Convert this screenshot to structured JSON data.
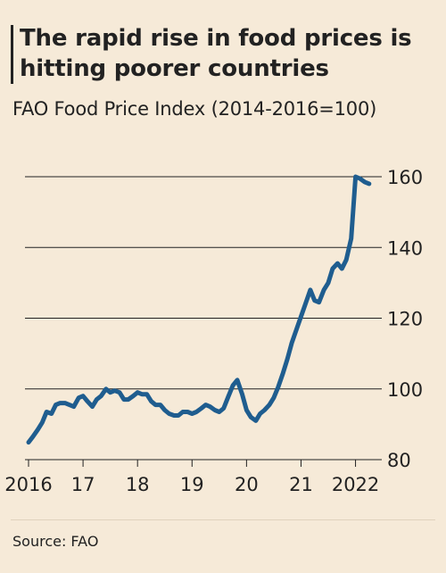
{
  "title": "The rapid rise in food prices is hitting poorer countries",
  "subtitle": "FAO Food Price Index (2014-2016=100)",
  "source": "Source: FAO",
  "colors": {
    "background": "#f6ead8",
    "line": "#1f5d8f",
    "grid": "#222222"
  },
  "chart_data": {
    "type": "line",
    "title": "The rapid rise in food prices is hitting poorer countries",
    "subtitle": "FAO Food Price Index (2014-2016=100)",
    "xlabel": "",
    "ylabel": "",
    "xlim": [
      2016.0,
      2022.4
    ],
    "ylim": [
      80,
      160
    ],
    "yticks": [
      80,
      100,
      120,
      140,
      160
    ],
    "xticks": [
      {
        "value": 2016,
        "label": "2016"
      },
      {
        "value": 2017,
        "label": "17"
      },
      {
        "value": 2018,
        "label": "18"
      },
      {
        "value": 2019,
        "label": "19"
      },
      {
        "value": 2020,
        "label": "20"
      },
      {
        "value": 2021,
        "label": "21"
      },
      {
        "value": 2022,
        "label": "2022"
      }
    ],
    "grid": true,
    "series": [
      {
        "x": [
          2016.0,
          2016.08,
          2016.17,
          2016.25,
          2016.33,
          2016.42,
          2016.5,
          2016.58,
          2016.67,
          2016.75,
          2016.83,
          2016.92,
          2017.0,
          2017.08,
          2017.17,
          2017.25,
          2017.33,
          2017.42,
          2017.5,
          2017.58,
          2017.67,
          2017.75,
          2017.83,
          2017.92,
          2018.0,
          2018.08,
          2018.17,
          2018.25,
          2018.33,
          2018.42,
          2018.5,
          2018.58,
          2018.67,
          2018.75,
          2018.83,
          2018.92,
          2019.0,
          2019.08,
          2019.17,
          2019.25,
          2019.33,
          2019.42,
          2019.5,
          2019.58,
          2019.67,
          2019.75,
          2019.83,
          2019.92,
          2020.0,
          2020.08,
          2020.17,
          2020.25,
          2020.33,
          2020.42,
          2020.5,
          2020.58,
          2020.67,
          2020.75,
          2020.83,
          2020.92,
          2021.0,
          2021.08,
          2021.17,
          2021.25,
          2021.33,
          2021.42,
          2021.5,
          2021.58,
          2021.67,
          2021.75,
          2021.83,
          2021.92,
          2022.0,
          2022.08,
          2022.17,
          2022.25
        ],
        "values": [
          84.9,
          86.5,
          88.5,
          90.5,
          93.5,
          93.0,
          95.5,
          96.0,
          96.0,
          95.5,
          95.0,
          97.5,
          98.0,
          96.5,
          95.0,
          97.0,
          98.0,
          100.0,
          99.0,
          99.5,
          99.0,
          97.0,
          97.0,
          98.0,
          99.0,
          98.5,
          98.5,
          96.5,
          95.5,
          95.5,
          94.0,
          93.0,
          92.5,
          92.5,
          93.5,
          93.5,
          93.0,
          93.5,
          94.5,
          95.5,
          95.0,
          94.0,
          93.5,
          94.5,
          98.0,
          101.0,
          102.5,
          98.5,
          94.0,
          92.0,
          91.0,
          93.0,
          94.0,
          95.5,
          97.5,
          100.5,
          104.5,
          108.5,
          113.0,
          117.0,
          120.5,
          124.0,
          128.0,
          125.0,
          124.5,
          128.0,
          130.0,
          134.0,
          135.5,
          134.0,
          136.5,
          142.5,
          160.0,
          159.5,
          158.5,
          158.0
        ]
      }
    ]
  }
}
